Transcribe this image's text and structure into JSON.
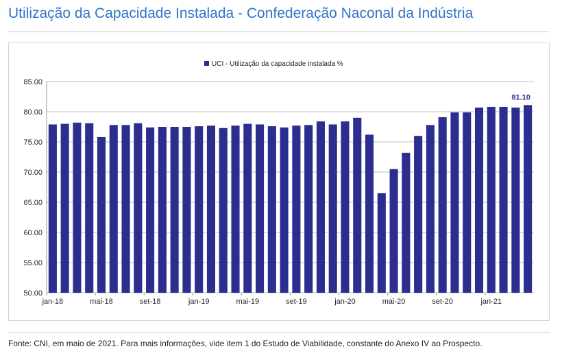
{
  "title": "Utilização da Capacidade Instalada - Confederação Naconal da Indústria",
  "source": "Fonte: CNI, em maio de 2021. Para mais informações, vide item 1 do Estudo de Viabilidade, constante do Anexo IV ao Prospecto.",
  "colors": {
    "bar": "#2b2e8f",
    "title": "#2f74c9",
    "grid": "#bfbfbf"
  },
  "chart_data": {
    "type": "bar",
    "title": "",
    "series_name": "UCI - Utilização da capacidade instalada %",
    "xlabel": "",
    "ylabel": "",
    "ylim": [
      50,
      85
    ],
    "yticks": [
      "50.00",
      "55.00",
      "60.00",
      "65.00",
      "70.00",
      "75.00",
      "80.00",
      "85.00"
    ],
    "grid": true,
    "legend": "top-center",
    "categories": [
      "jan-18",
      "fev-18",
      "mar-18",
      "abr-18",
      "mai-18",
      "jun-18",
      "jul-18",
      "ago-18",
      "set-18",
      "out-18",
      "nov-18",
      "dez-18",
      "jan-19",
      "fev-19",
      "mar-19",
      "abr-19",
      "mai-19",
      "jun-19",
      "jul-19",
      "ago-19",
      "set-19",
      "out-19",
      "nov-19",
      "dez-19",
      "jan-20",
      "fev-20",
      "mar-20",
      "abr-20",
      "mai-20",
      "jun-20",
      "jul-20",
      "ago-20",
      "set-20",
      "out-20",
      "nov-20",
      "dez-20",
      "jan-21",
      "fev-21",
      "mar-21",
      "abr-21"
    ],
    "x_tick_labels": [
      "jan-18",
      "mai-18",
      "set-18",
      "jan-19",
      "mai-19",
      "set-19",
      "jan-20",
      "mai-20",
      "set-20",
      "jan-21"
    ],
    "values": [
      77.9,
      78.0,
      78.2,
      78.1,
      75.8,
      77.8,
      77.8,
      78.1,
      77.4,
      77.5,
      77.5,
      77.5,
      77.6,
      77.7,
      77.3,
      77.7,
      78.0,
      77.9,
      77.6,
      77.4,
      77.7,
      77.8,
      78.4,
      77.9,
      78.4,
      79.0,
      76.2,
      66.5,
      70.5,
      73.2,
      76.0,
      77.8,
      79.1,
      79.9,
      79.9,
      80.7,
      80.8,
      80.8,
      80.7,
      81.1
    ],
    "annotation": "81.10"
  }
}
